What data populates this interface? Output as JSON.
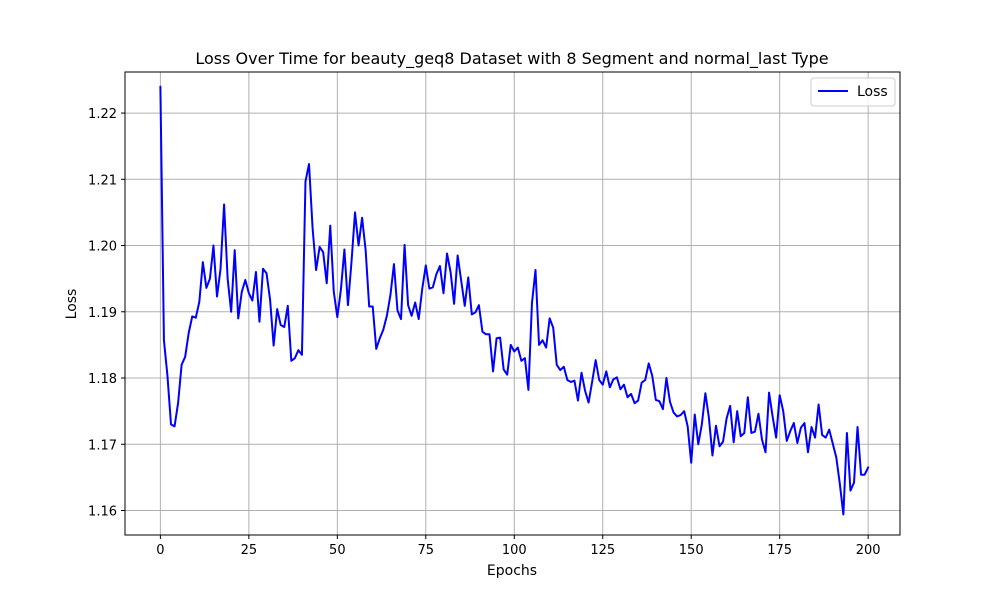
{
  "chart_data": {
    "type": "line",
    "title": "Loss Over Time for beauty_geq8 Dataset with 8 Segment and normal_last Type",
    "xlabel": "Epochs",
    "ylabel": "Loss",
    "xlim": [
      -10,
      209
    ],
    "ylim": [
      1.1563,
      1.2262
    ],
    "xticks": [
      0,
      25,
      50,
      75,
      100,
      125,
      150,
      175,
      200
    ],
    "yticks": [
      1.16,
      1.17,
      1.18,
      1.19,
      1.2,
      1.21,
      1.22
    ],
    "xtick_labels": [
      "0",
      "25",
      "50",
      "75",
      "100",
      "125",
      "150",
      "175",
      "200"
    ],
    "ytick_labels": [
      "1.16",
      "1.17",
      "1.18",
      "1.19",
      "1.20",
      "1.21",
      "1.22"
    ],
    "grid": true,
    "legend_position": "top-right",
    "legend": {
      "label": "Loss"
    },
    "series": [
      {
        "name": "Loss",
        "color": "#0000ff",
        "x_start": 0,
        "x_step": 1,
        "values": [
          1.224,
          1.1857,
          1.1803,
          1.173,
          1.1727,
          1.1762,
          1.182,
          1.1832,
          1.1868,
          1.1893,
          1.1891,
          1.1915,
          1.1975,
          1.1936,
          1.195,
          1.2,
          1.1923,
          1.1965,
          1.2062,
          1.195,
          1.19,
          1.1993,
          1.189,
          1.193,
          1.1948,
          1.1928,
          1.1917,
          1.196,
          1.1885,
          1.1965,
          1.1958,
          1.1918,
          1.1849,
          1.1904,
          1.188,
          1.1877,
          1.1909,
          1.1826,
          1.183,
          1.1842,
          1.1835,
          1.2097,
          1.2123,
          1.2027,
          1.1963,
          1.1998,
          1.199,
          1.1943,
          1.203,
          1.193,
          1.1892,
          1.1933,
          1.1994,
          1.191,
          1.1975,
          1.205,
          1.2,
          1.2042,
          1.1993,
          1.1908,
          1.1908,
          1.1844,
          1.186,
          1.1873,
          1.1894,
          1.1925,
          1.1972,
          1.1902,
          1.1889,
          1.2001,
          1.191,
          1.1894,
          1.1914,
          1.1889,
          1.1935,
          1.197,
          1.1935,
          1.1937,
          1.1957,
          1.1969,
          1.1928,
          1.1988,
          1.196,
          1.1912,
          1.1985,
          1.1947,
          1.1909,
          1.1952,
          1.1896,
          1.1899,
          1.191,
          1.187,
          1.1866,
          1.1866,
          1.181,
          1.186,
          1.1861,
          1.1813,
          1.1805,
          1.185,
          1.184,
          1.1846,
          1.1826,
          1.183,
          1.1782,
          1.1913,
          1.1963,
          1.185,
          1.1857,
          1.1846,
          1.189,
          1.1876,
          1.182,
          1.1812,
          1.1817,
          1.1797,
          1.1794,
          1.1796,
          1.1766,
          1.1808,
          1.1781,
          1.1763,
          1.1794,
          1.1827,
          1.1797,
          1.179,
          1.181,
          1.1786,
          1.1798,
          1.1801,
          1.1783,
          1.179,
          1.1771,
          1.1776,
          1.1762,
          1.1766,
          1.1793,
          1.1797,
          1.1822,
          1.1803,
          1.1767,
          1.1765,
          1.1753,
          1.18,
          1.1764,
          1.1748,
          1.1742,
          1.1744,
          1.175,
          1.1727,
          1.1672,
          1.1745,
          1.17,
          1.173,
          1.1777,
          1.174,
          1.1683,
          1.1728,
          1.1697,
          1.1704,
          1.1739,
          1.1758,
          1.1703,
          1.175,
          1.1712,
          1.1717,
          1.1771,
          1.1717,
          1.1719,
          1.1746,
          1.1707,
          1.1688,
          1.1778,
          1.1742,
          1.171,
          1.1774,
          1.175,
          1.1705,
          1.172,
          1.1732,
          1.1702,
          1.1725,
          1.1732,
          1.1688,
          1.1726,
          1.171,
          1.176,
          1.1714,
          1.171,
          1.1722,
          1.1701,
          1.168,
          1.164,
          1.1594,
          1.1717,
          1.163,
          1.1642,
          1.1726,
          1.1654,
          1.1654,
          1.1665
        ]
      }
    ]
  }
}
